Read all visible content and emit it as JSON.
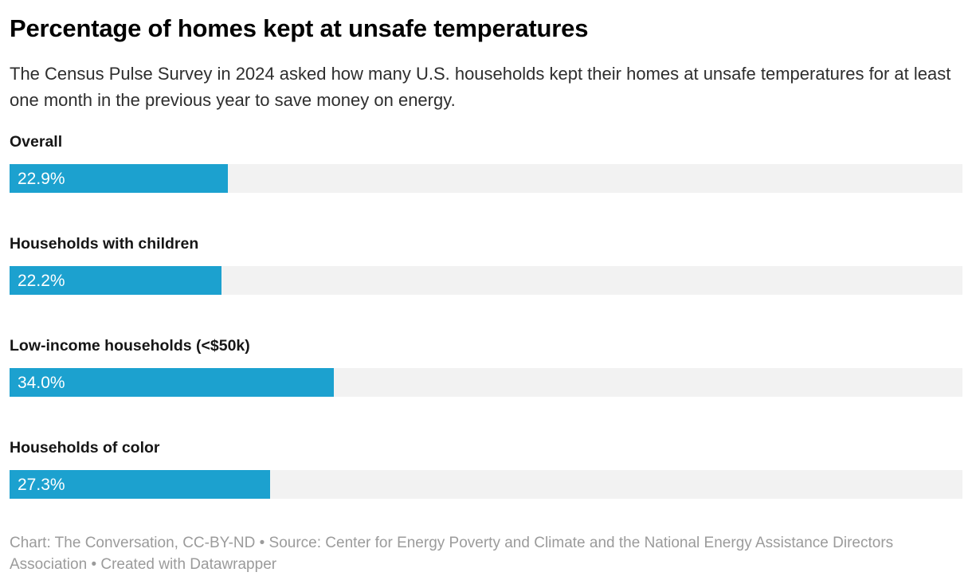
{
  "colors": {
    "bar": "#1CA1CF",
    "track": "#F2F2F2",
    "title_text": "#000000",
    "description_text": "#2E2E2E",
    "label_text": "#161616",
    "value_text": "#FFFFFF",
    "footer_text": "#9B9B9B",
    "background": "#FFFFFF"
  },
  "chart_data": {
    "type": "bar",
    "orientation": "horizontal",
    "title": "Percentage of homes kept at unsafe temperatures",
    "subtitle": "The Census Pulse Survey in 2024 asked how many U.S. households kept their homes at unsafe temperatures for at least one month in the previous year to save money on energy.",
    "categories": [
      "Overall",
      "Households with children",
      "Low-income households (<$50k)",
      "Households of color"
    ],
    "values": [
      22.9,
      22.2,
      34.0,
      27.3
    ],
    "value_labels": [
      "22.9%",
      "22.2%",
      "34.0%",
      "27.3%"
    ],
    "xlim": [
      0,
      100
    ],
    "unit": "%",
    "grid": false,
    "legend": false,
    "value_label_position": "inside-start"
  },
  "footer": {
    "text": "Chart: The Conversation, CC-BY-ND • Source: Center for Energy Poverty and Climate and the National Energy Assistance Directors Association • Created with Datawrapper"
  }
}
